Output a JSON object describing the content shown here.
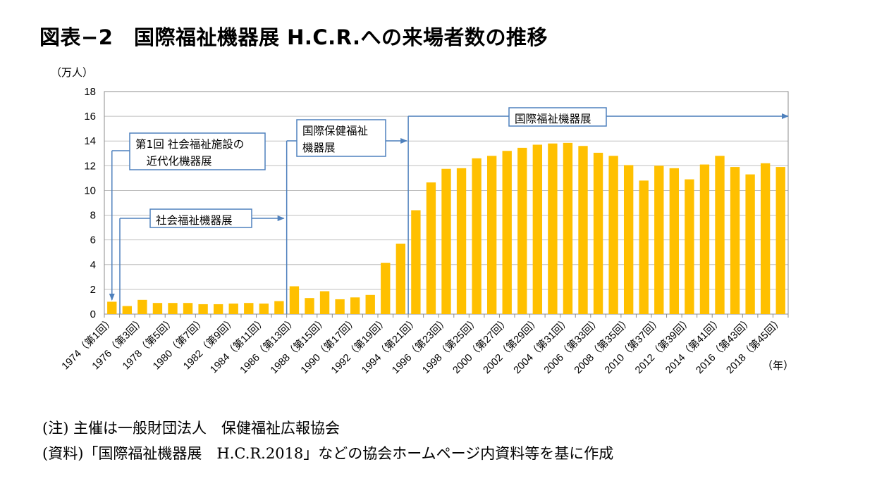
{
  "title": "図表−2　国際福祉機器展 H.C.R.への来場者数の推移",
  "notes": [
    "(注) 主催は一般財団法人　保健福祉広報協会",
    "(資料)「国際福祉機器展　H.C.R.2018」などの協会ホームページ内資料等を基に作成"
  ],
  "chart_data": {
    "type": "bar",
    "ylabel": "（万人）",
    "xlabel": "（年）",
    "ylim": [
      0,
      18
    ],
    "yticks": [
      0,
      2,
      4,
      6,
      8,
      10,
      12,
      14,
      16,
      18
    ],
    "grid": true,
    "bar_color": "#FFC000",
    "categories": [
      "1974",
      "1975",
      "1976",
      "1977",
      "1978",
      "1979",
      "1980",
      "1981",
      "1982",
      "1983",
      "1984",
      "1985",
      "1986",
      "1987",
      "1988",
      "1989",
      "1990",
      "1991",
      "1992",
      "1993",
      "1994",
      "1995",
      "1996",
      "1997",
      "1998",
      "1999",
      "2000",
      "2001",
      "2002",
      "2003",
      "2004",
      "2005",
      "2006",
      "2007",
      "2008",
      "2009",
      "2010",
      "2011",
      "2012",
      "2013",
      "2014",
      "2015",
      "2016",
      "2017",
      "2018"
    ],
    "tick_labels": [
      "1974（第1回）",
      "1976（第3回）",
      "1978（第5回）",
      "1980（第7回）",
      "1982（第9回）",
      "1984（第11回）",
      "1986（第13回）",
      "1988（第15回）",
      "1990（第17回）",
      "1992（第19回）",
      "1994（第21回）",
      "1996（第23回）",
      "1998（第25回）",
      "2000（第27回）",
      "2002（第29回）",
      "2004（第31回）",
      "2006（第33回）",
      "2008（第35回）",
      "2010（第37回）",
      "2012（第39回）",
      "2014（第41回）",
      "2016（第43回）",
      "2018（第45回）"
    ],
    "values": [
      1.0,
      0.65,
      1.15,
      0.9,
      0.9,
      0.9,
      0.8,
      0.8,
      0.85,
      0.9,
      0.85,
      1.05,
      2.25,
      1.3,
      1.85,
      1.2,
      1.35,
      1.55,
      4.15,
      5.7,
      8.4,
      10.65,
      11.75,
      11.8,
      12.6,
      12.8,
      13.2,
      13.45,
      13.7,
      13.8,
      13.85,
      13.6,
      13.05,
      12.8,
      12.05,
      10.8,
      12.0,
      11.8,
      10.9,
      12.1,
      12.8,
      11.9,
      11.3,
      12.2,
      11.9
    ],
    "annotations": [
      {
        "text": [
          "第1回 社会福祉施設の",
          "　近代化機器展"
        ],
        "start": "1974"
      },
      {
        "text": [
          "社会福祉機器展"
        ],
        "from": "1974",
        "to": "1985"
      },
      {
        "text": [
          "国際保健福祉",
          "機器展"
        ],
        "from": "1986",
        "to": "1993"
      },
      {
        "text": [
          "国際福祉機器展"
        ],
        "from": "1994",
        "to": "2018"
      }
    ]
  }
}
